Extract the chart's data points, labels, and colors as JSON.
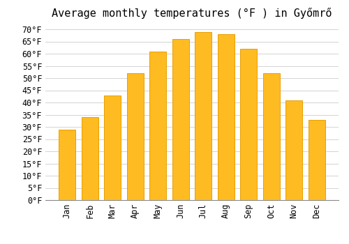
{
  "title": "Average monthly temperatures (°F ) in Győmrő",
  "months": [
    "Jan",
    "Feb",
    "Mar",
    "Apr",
    "May",
    "Jun",
    "Jul",
    "Aug",
    "Sep",
    "Oct",
    "Nov",
    "Dec"
  ],
  "values": [
    29,
    34,
    43,
    52,
    61,
    66,
    69,
    68,
    62,
    52,
    41,
    33
  ],
  "bar_color": "#FFBB22",
  "bar_edge_color": "#E8A000",
  "background_color": "#FFFFFF",
  "grid_color": "#CCCCCC",
  "ylim": [
    0,
    72
  ],
  "yticks": [
    0,
    5,
    10,
    15,
    20,
    25,
    30,
    35,
    40,
    45,
    50,
    55,
    60,
    65,
    70
  ],
  "title_fontsize": 11,
  "tick_fontsize": 8.5,
  "font_family": "monospace"
}
